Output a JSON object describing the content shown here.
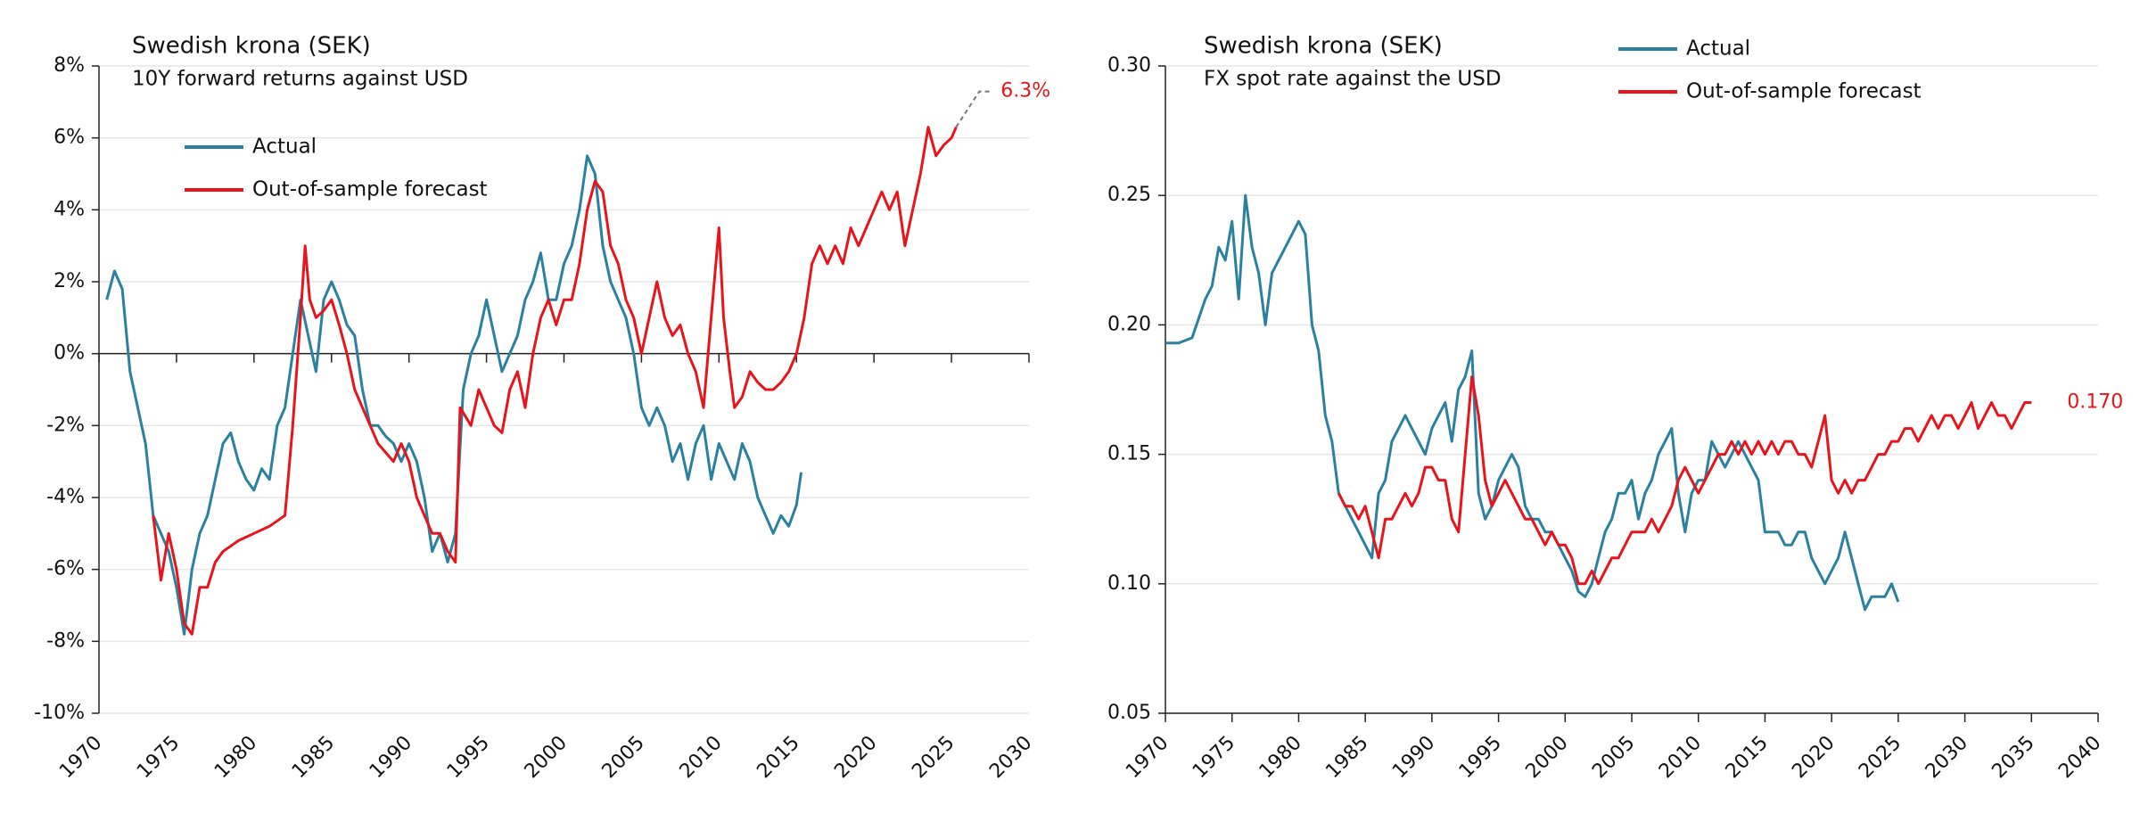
{
  "chart_data": [
    {
      "type": "line",
      "title": "Swedish krona (SEK)",
      "subtitle": "10Y forward returns against USD",
      "xlim": [
        1970,
        2030
      ],
      "xticks": [
        1970,
        1975,
        1980,
        1985,
        1990,
        1995,
        2000,
        2005,
        2010,
        2015,
        2020,
        2025,
        2030
      ],
      "ylim": [
        -10,
        8
      ],
      "yticks": [
        {
          "value": -10,
          "label": "-10%"
        },
        {
          "value": -8,
          "label": "-8%"
        },
        {
          "value": -6,
          "label": "-6%"
        },
        {
          "value": -4,
          "label": "-4%"
        },
        {
          "value": -2,
          "label": "-2%"
        },
        {
          "value": 0,
          "label": "0%"
        },
        {
          "value": 2,
          "label": "2%"
        },
        {
          "value": 4,
          "label": "4%"
        },
        {
          "value": 6,
          "label": "6%"
        },
        {
          "value": 8,
          "label": "8%"
        }
      ],
      "grid": true,
      "series": [
        {
          "name": "Actual",
          "color": "#2a809e",
          "x": [
            1970.5,
            1971,
            1971.5,
            1972,
            1972.5,
            1973,
            1973.5,
            1974,
            1974.5,
            1975,
            1975.5,
            1976,
            1976.5,
            1977,
            1977.5,
            1978,
            1978.5,
            1979,
            1979.5,
            1980,
            1980.5,
            1981,
            1981.5,
            1982,
            1982.5,
            1983,
            1983.5,
            1984,
            1984.5,
            1985,
            1985.5,
            1986,
            1986.5,
            1987,
            1987.5,
            1988,
            1988.5,
            1989,
            1989.5,
            1990,
            1990.5,
            1991,
            1991.5,
            1992,
            1992.5,
            1993,
            1993.5,
            1994,
            1994.5,
            1995,
            1995.5,
            1996,
            1996.5,
            1997,
            1997.5,
            1998,
            1998.5,
            1999,
            1999.5,
            2000,
            2000.5,
            2001,
            2001.5,
            2002,
            2002.5,
            2003,
            2003.5,
            2004,
            2004.5,
            2005,
            2005.5,
            2006,
            2006.5,
            2007,
            2007.5,
            2008,
            2008.5,
            2009,
            2009.5,
            2010,
            2010.5,
            2011,
            2011.5,
            2012,
            2012.5,
            2013,
            2013.5,
            2014,
            2014.5,
            2015,
            2015.3
          ],
          "values": [
            1.5,
            2.3,
            1.8,
            -0.5,
            -1.5,
            -2.5,
            -4.5,
            -5,
            -5.5,
            -6.5,
            -7.8,
            -6,
            -5,
            -4.5,
            -3.5,
            -2.5,
            -2.2,
            -3,
            -3.5,
            -3.8,
            -3.2,
            -3.5,
            -2,
            -1.5,
            0,
            1.5,
            0.5,
            -0.5,
            1.5,
            2,
            1.5,
            0.8,
            0.5,
            -1,
            -2,
            -2,
            -2.3,
            -2.5,
            -3,
            -2.5,
            -3,
            -4,
            -5.5,
            -5,
            -5.8,
            -5,
            -1,
            0,
            0.5,
            1.5,
            0.5,
            -0.5,
            0,
            0.5,
            1.5,
            2,
            2.8,
            1.5,
            1.5,
            2.5,
            3,
            4,
            5.5,
            5,
            3,
            2,
            1.5,
            1,
            0,
            -1.5,
            -2,
            -1.5,
            -2,
            -3,
            -2.5,
            -3.5,
            -2.5,
            -2,
            -3.5,
            -2.5,
            -3,
            -3.5,
            -2.5,
            -3,
            -4,
            -4.5,
            -5,
            -4.5,
            -4.8,
            -4.2,
            -3.3
          ]
        },
        {
          "name": "Out-of-sample forecast",
          "color": "#e8141b",
          "x": [
            1973.5,
            1974,
            1974.5,
            1975,
            1975.5,
            1976,
            1976.5,
            1977,
            1977.5,
            1978,
            1979,
            1980,
            1981,
            1982,
            1982.5,
            1983,
            1983.3,
            1983.6,
            1984,
            1984.5,
            1985,
            1985.5,
            1986,
            1986.5,
            1987,
            1987.5,
            1988,
            1989,
            1989.5,
            1990,
            1990.5,
            1991,
            1991.5,
            1992,
            1992.5,
            1993,
            1993.3,
            1994,
            1994.5,
            1995,
            1995.5,
            1996,
            1996.5,
            1997,
            1997.5,
            1998,
            1998.5,
            1999,
            1999.5,
            2000,
            2000.5,
            2001,
            2001.5,
            2002,
            2002.5,
            2003,
            2003.5,
            2004,
            2004.5,
            2005,
            2005.5,
            2006,
            2006.5,
            2007,
            2007.5,
            2008,
            2008.5,
            2009,
            2009.5,
            2010,
            2010.3,
            2010.7,
            2011,
            2011.5,
            2012,
            2012.5,
            2013,
            2013.5,
            2014,
            2014.5,
            2015,
            2015.5,
            2016,
            2016.5,
            2017,
            2017.5,
            2018,
            2018.5,
            2019,
            2019.5,
            2020,
            2020.5,
            2021,
            2021.5,
            2022,
            2022.5,
            2023,
            2023.5,
            2024,
            2024.5,
            2025,
            2025.3
          ],
          "values": [
            -4.5,
            -6.3,
            -5,
            -6,
            -7.5,
            -7.8,
            -6.5,
            -6.5,
            -5.8,
            -5.5,
            -5.2,
            -5,
            -4.8,
            -4.5,
            -2,
            1,
            3,
            1.5,
            1,
            1.2,
            1.5,
            0.8,
            0,
            -1,
            -1.5,
            -2,
            -2.5,
            -3,
            -2.5,
            -3,
            -4,
            -4.5,
            -5,
            -5,
            -5.5,
            -5.8,
            -1.5,
            -2,
            -1,
            -1.5,
            -2,
            -2.2,
            -1,
            -0.5,
            -1.5,
            0,
            1,
            1.5,
            0.8,
            1.5,
            1.5,
            2.5,
            4,
            4.8,
            4.5,
            3,
            2.5,
            1.5,
            1,
            0,
            1,
            2,
            1,
            0.5,
            0.8,
            0,
            -0.5,
            -1.5,
            1,
            3.5,
            1,
            -0.5,
            -1.5,
            -1.2,
            -0.5,
            -0.8,
            -1,
            -1,
            -0.8,
            -0.5,
            0,
            1,
            2.5,
            3,
            2.5,
            3,
            2.5,
            3.5,
            3,
            3.5,
            4,
            4.5,
            4,
            4.5,
            3,
            4,
            5,
            6.3,
            5.5,
            5.8,
            6,
            6.3
          ]
        }
      ],
      "annotations": [
        {
          "text": "6.3%",
          "x": 2025.3,
          "y": 6.3,
          "color": "#e8141b"
        }
      ]
    },
    {
      "type": "line",
      "title": "Swedish krona (SEK)",
      "subtitle": "FX spot rate against the USD",
      "xlim": [
        1970,
        2040
      ],
      "xticks": [
        1970,
        1975,
        1980,
        1985,
        1990,
        1995,
        2000,
        2005,
        2010,
        2015,
        2020,
        2025,
        2030,
        2035,
        2040
      ],
      "ylim": [
        0.05,
        0.3
      ],
      "yticks": [
        0.05,
        {
          "value": 0.1,
          "label": "0.10"
        },
        0.15,
        {
          "value": 0.2,
          "label": "0.20"
        },
        0.25,
        {
          "value": 0.3,
          "label": "0.30"
        }
      ],
      "grid": true,
      "series": [
        {
          "name": "Actual",
          "color": "#2a809e",
          "x": [
            1970,
            1971,
            1972,
            1973,
            1973.5,
            1974,
            1974.5,
            1975,
            1975.5,
            1976,
            1976.5,
            1977,
            1977.5,
            1978,
            1978.5,
            1979,
            1979.5,
            1980,
            1980.5,
            1981,
            1981.5,
            1982,
            1982.5,
            1983,
            1983.5,
            1984,
            1984.5,
            1985,
            1985.5,
            1986,
            1986.5,
            1987,
            1987.5,
            1988,
            1988.5,
            1989,
            1989.5,
            1990,
            1990.5,
            1991,
            1991.5,
            1992,
            1992.5,
            1993,
            1993.5,
            1994,
            1994.5,
            1995,
            1995.5,
            1996,
            1996.5,
            1997,
            1997.5,
            1998,
            1998.5,
            1999,
            1999.5,
            2000,
            2000.5,
            2001,
            2001.5,
            2002,
            2002.5,
            2003,
            2003.5,
            2004,
            2004.5,
            2005,
            2005.5,
            2006,
            2006.5,
            2007,
            2007.5,
            2008,
            2008.5,
            2009,
            2009.5,
            2010,
            2010.5,
            2011,
            2011.5,
            2012,
            2012.5,
            2013,
            2013.5,
            2014,
            2014.5,
            2015,
            2015.5,
            2016,
            2016.5,
            2017,
            2017.5,
            2018,
            2018.5,
            2019,
            2019.5,
            2020,
            2020.5,
            2021,
            2021.5,
            2022,
            2022.5,
            2023,
            2023.5,
            2024,
            2024.5,
            2025
          ],
          "values": [
            0.193,
            0.193,
            0.195,
            0.21,
            0.215,
            0.23,
            0.225,
            0.24,
            0.21,
            0.25,
            0.23,
            0.22,
            0.2,
            0.22,
            0.225,
            0.23,
            0.235,
            0.24,
            0.235,
            0.2,
            0.19,
            0.165,
            0.155,
            0.135,
            0.13,
            0.125,
            0.12,
            0.115,
            0.11,
            0.135,
            0.14,
            0.155,
            0.16,
            0.165,
            0.16,
            0.155,
            0.15,
            0.16,
            0.165,
            0.17,
            0.155,
            0.175,
            0.18,
            0.19,
            0.135,
            0.125,
            0.13,
            0.14,
            0.145,
            0.15,
            0.145,
            0.13,
            0.125,
            0.125,
            0.12,
            0.12,
            0.115,
            0.11,
            0.105,
            0.097,
            0.095,
            0.1,
            0.11,
            0.12,
            0.125,
            0.135,
            0.135,
            0.14,
            0.125,
            0.135,
            0.14,
            0.15,
            0.155,
            0.16,
            0.135,
            0.12,
            0.135,
            0.14,
            0.14,
            0.155,
            0.15,
            0.145,
            0.15,
            0.155,
            0.15,
            0.145,
            0.14,
            0.12,
            0.12,
            0.12,
            0.115,
            0.115,
            0.12,
            0.12,
            0.11,
            0.105,
            0.1,
            0.105,
            0.11,
            0.12,
            0.11,
            0.1,
            0.09,
            0.095,
            0.095,
            0.095,
            0.1,
            0.093
          ]
        },
        {
          "name": "Out-of-sample forecast",
          "color": "#e8141b",
          "x": [
            1983,
            1983.5,
            1984,
            1984.5,
            1985,
            1985.5,
            1986,
            1986.5,
            1987,
            1987.5,
            1988,
            1988.5,
            1989,
            1989.5,
            1990,
            1990.5,
            1991,
            1991.5,
            1992,
            1992.5,
            1993,
            1993.5,
            1994,
            1994.5,
            1995,
            1995.5,
            1996,
            1996.5,
            1997,
            1997.5,
            1998,
            1998.5,
            1999,
            1999.5,
            2000,
            2000.5,
            2001,
            2001.5,
            2002,
            2002.5,
            2003,
            2003.5,
            2004,
            2004.5,
            2005,
            2005.5,
            2006,
            2006.5,
            2007,
            2007.5,
            2008,
            2008.5,
            2009,
            2009.5,
            2010,
            2010.5,
            2011,
            2011.5,
            2012,
            2012.5,
            2013,
            2013.5,
            2014,
            2014.5,
            2015,
            2015.5,
            2016,
            2016.5,
            2017,
            2017.5,
            2018,
            2018.5,
            2019,
            2019.5,
            2020,
            2020.5,
            2021,
            2021.5,
            2022,
            2022.5,
            2023,
            2023.5,
            2024,
            2024.5,
            2025,
            2025.5,
            2026,
            2026.5,
            2027,
            2027.5,
            2028,
            2028.5,
            2029,
            2029.5,
            2030,
            2030.5,
            2031,
            2031.5,
            2032,
            2032.5,
            2033,
            2033.5,
            2034,
            2034.5,
            2035
          ],
          "values": [
            0.135,
            0.13,
            0.13,
            0.125,
            0.13,
            0.12,
            0.11,
            0.125,
            0.125,
            0.13,
            0.135,
            0.13,
            0.135,
            0.145,
            0.145,
            0.14,
            0.14,
            0.125,
            0.12,
            0.15,
            0.18,
            0.165,
            0.14,
            0.13,
            0.135,
            0.14,
            0.135,
            0.13,
            0.125,
            0.125,
            0.12,
            0.115,
            0.12,
            0.115,
            0.115,
            0.11,
            0.1,
            0.1,
            0.105,
            0.1,
            0.105,
            0.11,
            0.11,
            0.115,
            0.12,
            0.12,
            0.12,
            0.125,
            0.12,
            0.125,
            0.13,
            0.14,
            0.145,
            0.14,
            0.135,
            0.14,
            0.145,
            0.15,
            0.15,
            0.155,
            0.15,
            0.155,
            0.15,
            0.155,
            0.15,
            0.155,
            0.15,
            0.155,
            0.155,
            0.15,
            0.15,
            0.145,
            0.155,
            0.165,
            0.14,
            0.135,
            0.14,
            0.135,
            0.14,
            0.14,
            0.145,
            0.15,
            0.15,
            0.155,
            0.155,
            0.16,
            0.16,
            0.155,
            0.16,
            0.165,
            0.16,
            0.165,
            0.165,
            0.16,
            0.165,
            0.17,
            0.16,
            0.165,
            0.17,
            0.165,
            0.165,
            0.16,
            0.165,
            0.17,
            0.17
          ]
        }
      ],
      "annotations": [
        {
          "text": "0.170",
          "x": 2035,
          "y": 0.17,
          "color": "#e8141b"
        }
      ]
    }
  ]
}
